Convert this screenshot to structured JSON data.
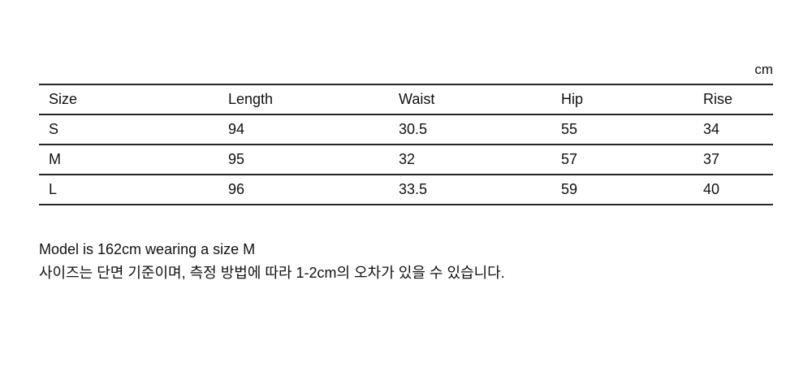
{
  "chart_data": {
    "type": "table",
    "unit": "cm",
    "columns": [
      "Size",
      "Length",
      "Waist",
      "Hip",
      "Rise"
    ],
    "rows": [
      [
        "S",
        "94",
        "30.5",
        "55",
        "34"
      ],
      [
        "M",
        "95",
        "32",
        "57",
        "37"
      ],
      [
        "L",
        "96",
        "33.5",
        "59",
        "40"
      ]
    ]
  },
  "notes": {
    "line1": "Model is 162cm wearing a size M",
    "line2": "사이즈는 단면 기준이며, 측정 방법에 따라 1-2cm의 오차가 있을 수 있습니다."
  },
  "colors": {
    "background": "#ffffff",
    "text": "#111111",
    "line": "#262626"
  }
}
